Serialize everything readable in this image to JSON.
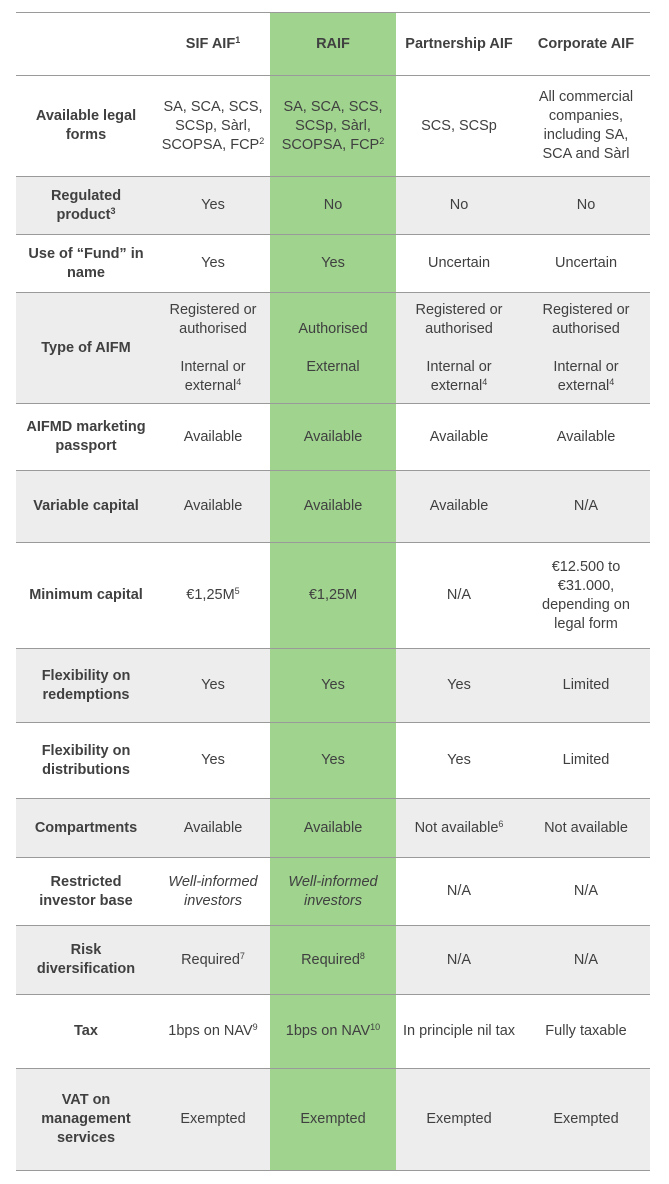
{
  "table": {
    "columns": [
      {
        "text": "SIF AIF",
        "sup": "1"
      },
      "RAIF",
      "Partnership AIF",
      "Corporate AIF"
    ],
    "rows": [
      {
        "label": "Available legal forms",
        "cells": [
          {
            "text": "SA, SCA, SCS, SCSp, Sàrl, SCOPSA, FCP",
            "sup": "2"
          },
          {
            "text": "SA, SCA, SCS, SCSp, Sàrl, SCOPSA, FCP",
            "sup": "2"
          },
          "SCS, SCSp",
          "All commercial companies, including SA, SCA and Sàrl"
        ]
      },
      {
        "label": {
          "text": "Regulated product",
          "sup": "3"
        },
        "cells": [
          "Yes",
          "No",
          "No",
          "No"
        ]
      },
      {
        "label": "Use of “Fund” in name",
        "cells": [
          "Yes",
          "Yes",
          "Uncertain",
          "Uncertain"
        ]
      },
      {
        "label": "Type of AIFM",
        "cells": [
          {
            "paragraphs": [
              "Registered or authorised",
              {
                "text": "Internal or external",
                "sup": "4"
              }
            ]
          },
          {
            "paragraphs": [
              "Authorised",
              "External"
            ]
          },
          {
            "paragraphs": [
              "Registered or authorised",
              {
                "text": "Internal or external",
                "sup": "4"
              }
            ]
          },
          {
            "paragraphs": [
              "Registered or authorised",
              {
                "text": "Internal or external",
                "sup": "4"
              }
            ]
          }
        ]
      },
      {
        "label": "AIFMD marketing passport",
        "cells": [
          "Available",
          "Available",
          "Available",
          "Available"
        ]
      },
      {
        "label": "Variable capital",
        "cells": [
          "Available",
          "Available",
          "Available",
          "N/A"
        ]
      },
      {
        "label": "Minimum capital",
        "cells": [
          {
            "text": "€1,25M",
            "sup": "5"
          },
          "€1,25M",
          "N/A",
          "€12.500 to €31.000, depending on legal form"
        ]
      },
      {
        "label": "Flexibility on redemptions",
        "cells": [
          "Yes",
          "Yes",
          "Yes",
          "Limited"
        ]
      },
      {
        "label": "Flexibility on distributions",
        "cells": [
          "Yes",
          "Yes",
          "Yes",
          "Limited"
        ]
      },
      {
        "label": "Compartments",
        "cells": [
          "Available",
          "Available",
          {
            "text": "Not available",
            "sup": "6"
          },
          "Not available"
        ]
      },
      {
        "label": "Restricted investor base",
        "cells": [
          {
            "text": "Well-informed investors",
            "italic": true
          },
          {
            "text": "Well-informed investors",
            "italic": true
          },
          "N/A",
          "N/A"
        ]
      },
      {
        "label": "Risk diversification",
        "cells": [
          {
            "text": "Required",
            "sup": "7"
          },
          {
            "text": "Required",
            "sup": "8"
          },
          "N/A",
          "N/A"
        ]
      },
      {
        "label": "Tax",
        "cells": [
          {
            "text": "1bps on NAV",
            "sup": "9"
          },
          {
            "text": "1bps on NAV",
            "sup": "10"
          },
          "In principle nil tax",
          "Fully taxable"
        ]
      },
      {
        "label": "VAT on management services",
        "cells": [
          "Exempted",
          "Exempted",
          "Exempted",
          "Exempted"
        ]
      }
    ]
  }
}
